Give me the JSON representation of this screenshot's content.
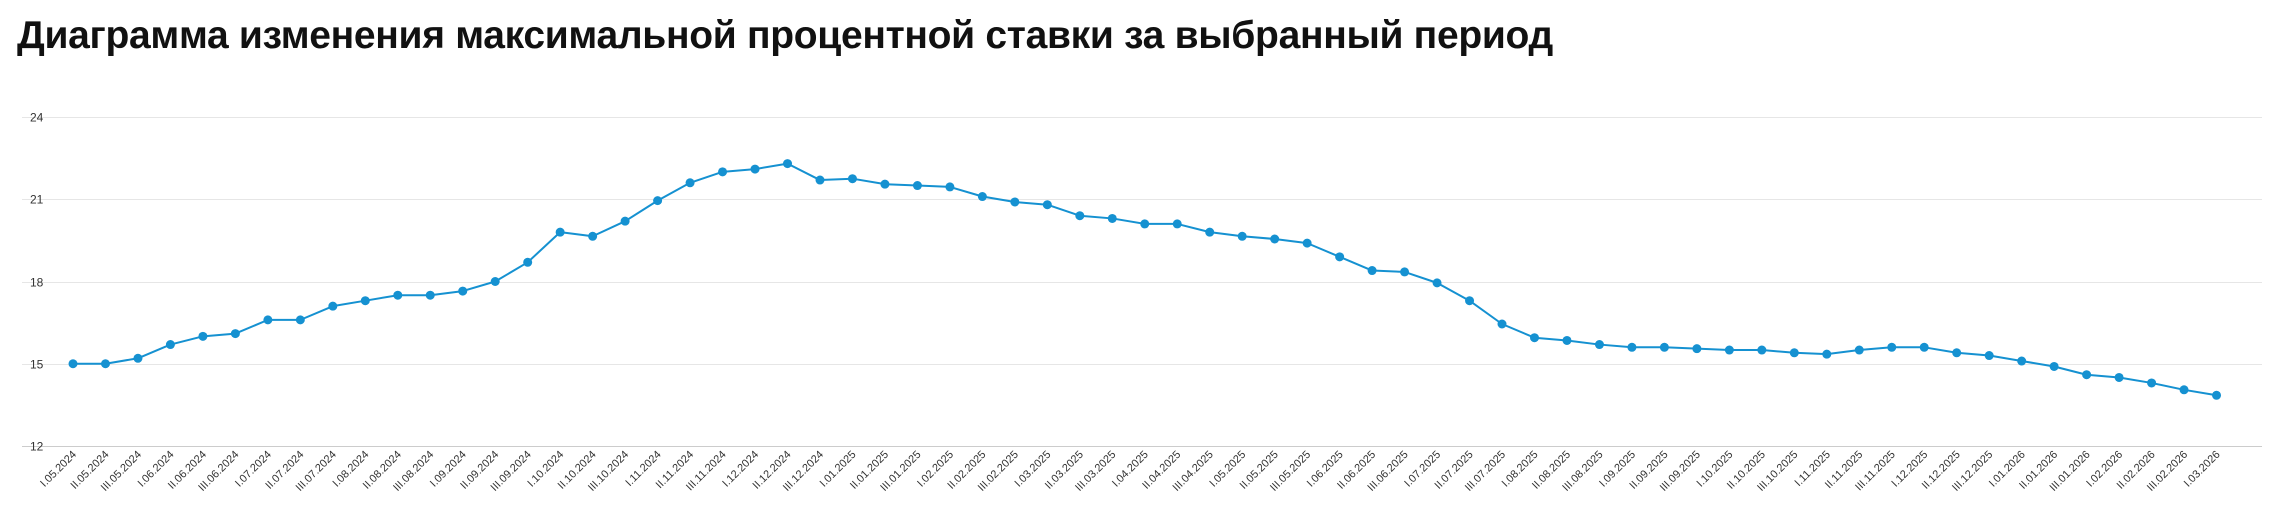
{
  "title": "Диаграмма изменения максимальной процентной ставки за выбранный период",
  "colors": {
    "series": "#1591d1",
    "grid": "#e6e6e6",
    "axis": "#cccccc",
    "text": "#333333",
    "title": "#111111"
  },
  "chart_data": {
    "type": "line",
    "title": "Диаграмма изменения максимальной процентной ставки за выбранный период",
    "xlabel": "",
    "ylabel": "",
    "ylim": [
      12,
      24
    ],
    "yticks": [
      12,
      15,
      18,
      21,
      24
    ],
    "grid": true,
    "legend": "none",
    "categories": [
      "I.05.2024",
      "II.05.2024",
      "III.05.2024",
      "I.06.2024",
      "II.06.2024",
      "III.06.2024",
      "I.07.2024",
      "II.07.2024",
      "III.07.2024",
      "I.08.2024",
      "II.08.2024",
      "III.08.2024",
      "I.09.2024",
      "II.09.2024",
      "III.09.2024",
      "I.10.2024",
      "II.10.2024",
      "III.10.2024",
      "I.11.2024",
      "II.11.2024",
      "III.11.2024",
      "I.12.2024",
      "II.12.2024",
      "III.12.2024",
      "I.01.2025",
      "II.01.2025",
      "III.01.2025",
      "I.02.2025",
      "II.02.2025",
      "III.02.2025",
      "I.03.2025",
      "II.03.2025",
      "III.03.2025",
      "I.04.2025",
      "II.04.2025",
      "III.04.2025",
      "I.05.2025",
      "II.05.2025",
      "III.05.2025",
      "I.06.2025",
      "II.06.2025",
      "III.06.2025",
      "I.07.2025",
      "II.07.2025",
      "III.07.2025",
      "I.08.2025",
      "II.08.2025",
      "III.08.2025",
      "I.09.2025",
      "II.09.2025",
      "III.09.2025",
      "I.10.2025",
      "II.10.2025",
      "III.10.2025",
      "I.11.2025",
      "II.11.2025",
      "III.11.2025",
      "I.12.2025",
      "II.12.2025",
      "III.12.2025",
      "I.01.2026",
      "II.01.2026",
      "III.01.2026",
      "I.02.2026",
      "II.02.2026",
      "III.02.2026",
      "I.03.2026"
    ],
    "series": [
      {
        "values": [
          15.0,
          15.0,
          15.2,
          15.7,
          16.0,
          16.1,
          16.6,
          16.6,
          17.1,
          17.3,
          17.5,
          17.5,
          17.65,
          18.0,
          18.7,
          19.8,
          19.65,
          20.2,
          20.95,
          21.6,
          22.0,
          22.1,
          22.3,
          21.7,
          21.75,
          21.55,
          21.5,
          21.45,
          21.1,
          20.9,
          20.8,
          20.4,
          20.3,
          20.1,
          20.1,
          19.8,
          19.65,
          19.55,
          19.4,
          18.9,
          18.4,
          18.35,
          17.95,
          17.3,
          16.45,
          15.95,
          15.85,
          15.7,
          15.6,
          15.6,
          15.55,
          15.5,
          15.5,
          15.4,
          15.35,
          15.5,
          15.6,
          15.6,
          15.4,
          15.3,
          15.1,
          14.9,
          14.6,
          14.5,
          14.3,
          14.05,
          13.85
        ]
      }
    ]
  }
}
